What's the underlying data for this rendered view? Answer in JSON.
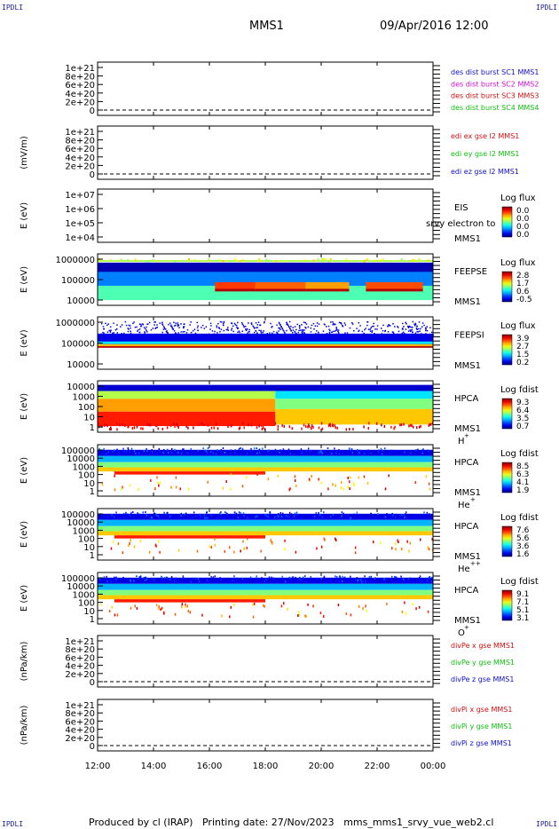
{
  "header": {
    "corner_label": "IPDLI",
    "mission": "MMS1",
    "date": "09/Apr/2016 12:00"
  },
  "footer": {
    "produced_by": "Produced by cl (IRAP)",
    "printing_date": "Printing date: 27/Nov/2023",
    "script": "mms_mms1_srvy_vue_web2.cl"
  },
  "colors": {
    "blue": "#1010c8",
    "magenta": "#d010d0",
    "red": "#d01010",
    "green": "#10c010",
    "dark_blue": "#0a0a90"
  },
  "chart_data": {
    "type": "heatmap",
    "x_ticks": [
      "12:00",
      "14:00",
      "16:00",
      "18:00",
      "20:00",
      "22:00",
      "00:00"
    ],
    "panels": [
      {
        "id": "des-dist",
        "type": "line",
        "y_ticks": [
          "1e+21",
          "8e+20",
          "6e+20",
          "4e+20",
          "2e+20",
          "0"
        ],
        "ylabel": "",
        "legend": [
          {
            "text": "des dist burst SC1 MMS1",
            "color": "blue"
          },
          {
            "text": "des dist burst SC2 MMS2",
            "color": "magenta"
          },
          {
            "text": "des dist burst SC3 MMS3",
            "color": "red"
          },
          {
            "text": "des dist burst SC4 MMS4",
            "color": "green"
          }
        ]
      },
      {
        "id": "edi-e",
        "type": "line",
        "y_ticks": [
          "1e+21",
          "8e+20",
          "6e+20",
          "4e+20",
          "2e+20",
          "0"
        ],
        "ylabel": "(mV/m)",
        "legend": [
          {
            "text": "edi ex gse l2 MMS1",
            "color": "red"
          },
          {
            "text": "edi ey gse l2 MMS1",
            "color": "green"
          },
          {
            "text": "edi ez gse l2 MMS1",
            "color": "blue"
          }
        ]
      },
      {
        "id": "eis",
        "type": "heatmap",
        "y_ticks": [
          "1e+07",
          "1e+06",
          "1e+05",
          "1e+04"
        ],
        "ylabel": "E (eV)",
        "instrument": [
          "EIS",
          "MMS1"
        ],
        "overlay_text": "srvy electron to",
        "colorbar": {
          "title": "Log flux",
          "ticks": [
            "0.0",
            "0.0",
            "0.0",
            "0.0"
          ]
        }
      },
      {
        "id": "feepse",
        "type": "heatmap",
        "y_ticks": [
          "1000000",
          "100000",
          "10000"
        ],
        "ylabel": "E (eV)",
        "instrument": [
          "FEEPSE",
          "MMS1"
        ],
        "colorbar": {
          "title": "Log flux",
          "ticks": [
            "2.8",
            "1.7",
            "0.6",
            "-0.5"
          ]
        }
      },
      {
        "id": "feepsi",
        "type": "heatmap",
        "y_ticks": [
          "1000000",
          "100000",
          "10000"
        ],
        "ylabel": "E (eV)",
        "instrument": [
          "FEEPSI",
          "MMS1"
        ],
        "colorbar": {
          "title": "Log flux",
          "ticks": [
            "3.9",
            "2.7",
            "1.5",
            "0.2"
          ]
        }
      },
      {
        "id": "hpca-h",
        "type": "heatmap",
        "y_ticks": [
          "10000",
          "1000",
          "100",
          "10",
          "1"
        ],
        "ylabel": "E (eV)",
        "instrument": [
          "HPCA",
          "MMS1"
        ],
        "species": "H",
        "charge": "+",
        "colorbar": {
          "title": "Log fdist",
          "ticks": [
            "9.3",
            "6.4",
            "3.5",
            "0.7"
          ]
        }
      },
      {
        "id": "hpca-he",
        "type": "heatmap",
        "y_ticks": [
          "100000",
          "10000",
          "1000",
          "100",
          "10",
          "1"
        ],
        "ylabel": "E (eV)",
        "instrument": [
          "HPCA",
          "MMS1"
        ],
        "species": "He",
        "charge": "+",
        "colorbar": {
          "title": "Log fdist",
          "ticks": [
            "8.5",
            "6.3",
            "4.1",
            "1.9"
          ]
        }
      },
      {
        "id": "hpca-hepp",
        "type": "heatmap",
        "y_ticks": [
          "100000",
          "10000",
          "1000",
          "100",
          "10",
          "1"
        ],
        "ylabel": "E (eV)",
        "instrument": [
          "HPCA",
          "MMS1"
        ],
        "species": "He",
        "charge": "++",
        "colorbar": {
          "title": "Log fdist",
          "ticks": [
            "7.6",
            "5.6",
            "3.6",
            "1.6"
          ]
        }
      },
      {
        "id": "hpca-o",
        "type": "heatmap",
        "y_ticks": [
          "100000",
          "10000",
          "1000",
          "100",
          "10",
          "1"
        ],
        "ylabel": "E (eV)",
        "instrument": [
          "HPCA",
          "MMS1"
        ],
        "species": "O",
        "charge": "+",
        "colorbar": {
          "title": "Log fdist",
          "ticks": [
            "9.1",
            "7.1",
            "5.1",
            "3.1"
          ]
        }
      },
      {
        "id": "divpe",
        "type": "line",
        "y_ticks": [
          "1e+21",
          "8e+20",
          "6e+20",
          "4e+20",
          "2e+20",
          "0"
        ],
        "ylabel": "(nPa/km)",
        "legend": [
          {
            "text": "divPe x gse MMS1",
            "color": "red"
          },
          {
            "text": "divPe y gse MMS1",
            "color": "green"
          },
          {
            "text": "divPe z gse MMS1",
            "color": "blue"
          }
        ]
      },
      {
        "id": "divpi",
        "type": "line",
        "y_ticks": [
          "1e+21",
          "8e+20",
          "6e+20",
          "4e+20",
          "2e+20",
          "0"
        ],
        "ylabel": "(nPa/km)",
        "legend": [
          {
            "text": "divPi x gse MMS1",
            "color": "red"
          },
          {
            "text": "divPi y gse MMS1",
            "color": "green"
          },
          {
            "text": "divPi z gse MMS1",
            "color": "blue"
          }
        ]
      }
    ]
  }
}
